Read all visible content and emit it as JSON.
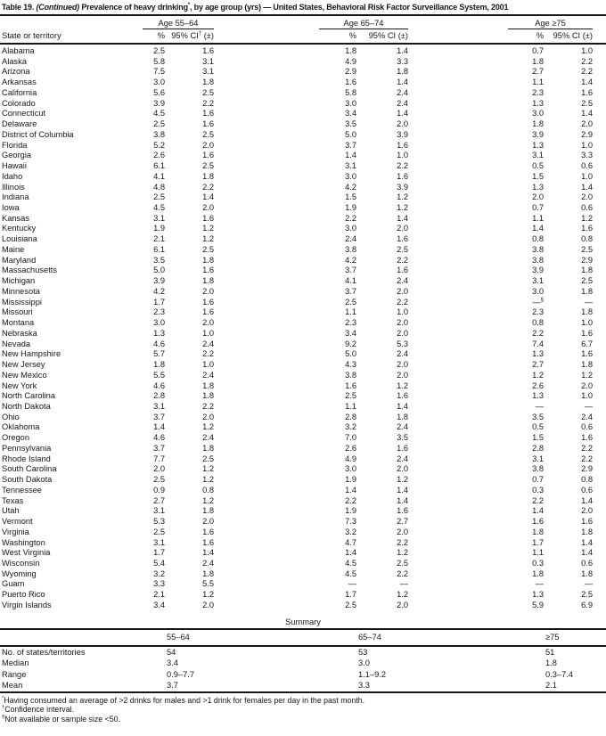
{
  "title": {
    "label": "Table 19.",
    "continued": " (Continued) ",
    "before_star": "Prevalence of heavy drinking",
    "star": "*",
    "after_star": ", by age group (yrs) — United States, Behavioral Risk Factor Surveillance System, 2001"
  },
  "table": {
    "col_groups": [
      "Age 55–64",
      "Age 65–74",
      "Age ≥75"
    ],
    "state_col_header": "State or territory",
    "pct_header": "%",
    "ci_header_first": "95% CI† (±)",
    "ci_header": "95% CI (±)",
    "rows": [
      {
        "state": "Alabama",
        "values": [
          "2.5",
          "1.6",
          "1.8",
          "1.4",
          "0.7",
          "1.0"
        ]
      },
      {
        "state": "Alaska",
        "values": [
          "5.8",
          "3.1",
          "4.9",
          "3.3",
          "1.8",
          "2.2"
        ]
      },
      {
        "state": "Arizona",
        "values": [
          "7.5",
          "3.1",
          "2.9",
          "1.8",
          "2.7",
          "2.2"
        ]
      },
      {
        "state": "Arkansas",
        "values": [
          "3.0",
          "1.8",
          "1.6",
          "1.4",
          "1.1",
          "1.4"
        ]
      },
      {
        "state": "California",
        "values": [
          "5.6",
          "2.5",
          "5.8",
          "2.4",
          "2.3",
          "1.6"
        ]
      },
      {
        "state": "Colorado",
        "values": [
          "3.9",
          "2.2",
          "3.0",
          "2.4",
          "1.3",
          "2.5"
        ]
      },
      {
        "state": "Connecticut",
        "values": [
          "4.5",
          "1.6",
          "3.4",
          "1.4",
          "3.0",
          "1.4"
        ]
      },
      {
        "state": "Delaware",
        "values": [
          "2.5",
          "1.6",
          "3.5",
          "2.0",
          "1.8",
          "2.0"
        ]
      },
      {
        "state": "District of Columbia",
        "values": [
          "3.8",
          "2.5",
          "5.0",
          "3.9",
          "3.9",
          "2.9"
        ]
      },
      {
        "state": "Florida",
        "values": [
          "5.2",
          "2.0",
          "3.7",
          "1.6",
          "1.3",
          "1.0"
        ]
      },
      {
        "state": "Georgia",
        "values": [
          "2.6",
          "1.6",
          "1.4",
          "1.0",
          "3.1",
          "3.3"
        ]
      },
      {
        "state": "Hawaii",
        "values": [
          "6.1",
          "2.5",
          "3.1",
          "2.2",
          "0.5",
          "0.6"
        ]
      },
      {
        "state": "Idaho",
        "values": [
          "4.1",
          "1.8",
          "3.0",
          "1.6",
          "1.5",
          "1.0"
        ]
      },
      {
        "state": "Illinois",
        "values": [
          "4.8",
          "2.2",
          "4.2",
          "3.9",
          "1.3",
          "1.4"
        ]
      },
      {
        "state": "Indiana",
        "values": [
          "2.5",
          "1.4",
          "1.5",
          "1.2",
          "2.0",
          "2.0"
        ]
      },
      {
        "state": "Iowa",
        "values": [
          "4.5",
          "2.0",
          "1.9",
          "1.2",
          "0.7",
          "0.6"
        ]
      },
      {
        "state": "Kansas",
        "values": [
          "3.1",
          "1.6",
          "2.2",
          "1.4",
          "1.1",
          "1.2"
        ]
      },
      {
        "state": "Kentucky",
        "values": [
          "1.9",
          "1.2",
          "3.0",
          "2.0",
          "1.4",
          "1.6"
        ]
      },
      {
        "state": "Louisiana",
        "values": [
          "2.1",
          "1.2",
          "2.4",
          "1.6",
          "0.8",
          "0.8"
        ]
      },
      {
        "state": "Maine",
        "values": [
          "6.1",
          "2.5",
          "3.8",
          "2.5",
          "3.8",
          "2.5"
        ]
      },
      {
        "state": "Maryland",
        "values": [
          "3.5",
          "1.8",
          "4.2",
          "2.2",
          "3.8",
          "2.9"
        ]
      },
      {
        "state": "Massachusetts",
        "values": [
          "5.0",
          "1.6",
          "3.7",
          "1.6",
          "3.9",
          "1.8"
        ]
      },
      {
        "state": "Michigan",
        "values": [
          "3.9",
          "1.8",
          "4.1",
          "2.4",
          "3.1",
          "2.5"
        ]
      },
      {
        "state": "Minnesota",
        "values": [
          "4.2",
          "2.0",
          "3.7",
          "2.0",
          "3.0",
          "1.8"
        ]
      },
      {
        "state": "Mississippi",
        "values": [
          "1.7",
          "1.6",
          "2.5",
          "2.2",
          "—§",
          "—"
        ]
      },
      {
        "state": "Missouri",
        "values": [
          "2.3",
          "1.6",
          "1.1",
          "1.0",
          "2.3",
          "1.8"
        ]
      },
      {
        "state": "Montana",
        "values": [
          "3.0",
          "2.0",
          "2.3",
          "2.0",
          "0.8",
          "1.0"
        ]
      },
      {
        "state": "Nebraska",
        "values": [
          "1.3",
          "1.0",
          "3.4",
          "2.0",
          "2.2",
          "1.6"
        ]
      },
      {
        "state": "Nevada",
        "values": [
          "4.6",
          "2.4",
          "9.2",
          "5.3",
          "7.4",
          "6.7"
        ]
      },
      {
        "state": "New Hampshire",
        "values": [
          "5.7",
          "2.2",
          "5.0",
          "2.4",
          "1.3",
          "1.6"
        ]
      },
      {
        "state": "New Jersey",
        "values": [
          "1.8",
          "1.0",
          "4.3",
          "2.0",
          "2.7",
          "1.8"
        ]
      },
      {
        "state": "New Mexico",
        "values": [
          "5.5",
          "2.4",
          "3.8",
          "2.0",
          "1.2",
          "1.2"
        ]
      },
      {
        "state": "New York",
        "values": [
          "4.6",
          "1.8",
          "1.6",
          "1.2",
          "2.6",
          "2.0"
        ]
      },
      {
        "state": "North Carolina",
        "values": [
          "2.8",
          "1.8",
          "2.5",
          "1.6",
          "1.3",
          "1.0"
        ]
      },
      {
        "state": "North Dakota",
        "values": [
          "3.1",
          "2.2",
          "1.1",
          "1.4",
          "—",
          "—"
        ]
      },
      {
        "state": "Ohio",
        "values": [
          "3.7",
          "2.0",
          "2.8",
          "1.8",
          "3.5",
          "2.4"
        ]
      },
      {
        "state": "Oklahoma",
        "values": [
          "1.4",
          "1.2",
          "3.2",
          "2.4",
          "0.5",
          "0.6"
        ]
      },
      {
        "state": "Oregon",
        "values": [
          "4.6",
          "2.4",
          "7.0",
          "3.5",
          "1.5",
          "1.6"
        ]
      },
      {
        "state": "Pennsylvania",
        "values": [
          "3.7",
          "1.8",
          "2.6",
          "1.6",
          "2.8",
          "2.2"
        ]
      },
      {
        "state": "Rhode Island",
        "values": [
          "7.7",
          "2.5",
          "4.9",
          "2.4",
          "3.1",
          "2.2"
        ]
      },
      {
        "state": "South Carolina",
        "values": [
          "2.0",
          "1.2",
          "3.0",
          "2.0",
          "3.8",
          "2.9"
        ]
      },
      {
        "state": "South Dakota",
        "values": [
          "2.5",
          "1.2",
          "1.9",
          "1.2",
          "0.7",
          "0.8"
        ]
      },
      {
        "state": "Tennessee",
        "values": [
          "0.9",
          "0.8",
          "1.4",
          "1.4",
          "0.3",
          "0.6"
        ]
      },
      {
        "state": "Texas",
        "values": [
          "2.7",
          "1.2",
          "2.2",
          "1.4",
          "2.2",
          "1.4"
        ]
      },
      {
        "state": "Utah",
        "values": [
          "3.1",
          "1.8",
          "1.9",
          "1.6",
          "1.4",
          "2.0"
        ]
      },
      {
        "state": "Vermont",
        "values": [
          "5.3",
          "2.0",
          "7.3",
          "2.7",
          "1.6",
          "1.6"
        ]
      },
      {
        "state": "Virginia",
        "values": [
          "2.5",
          "1.6",
          "3.2",
          "2.0",
          "1.8",
          "1.8"
        ]
      },
      {
        "state": "Washington",
        "values": [
          "3.1",
          "1.6",
          "4.7",
          "2.2",
          "1.7",
          "1.4"
        ]
      },
      {
        "state": "West Virginia",
        "values": [
          "1.7",
          "1.4",
          "1.4",
          "1.2",
          "1.1",
          "1.4"
        ]
      },
      {
        "state": "Wisconsin",
        "values": [
          "5.4",
          "2.4",
          "4.5",
          "2.5",
          "0.3",
          "0.6"
        ]
      },
      {
        "state": "Wyoming",
        "values": [
          "3.2",
          "1.8",
          "4.5",
          "2.2",
          "1.8",
          "1.8"
        ]
      },
      {
        "state": "Guam",
        "values": [
          "3.3",
          "5.5",
          "—",
          "—",
          "—",
          "—"
        ]
      },
      {
        "state": "Puerto Rico",
        "values": [
          "2.1",
          "1.2",
          "1.7",
          "1.2",
          "1.3",
          "2.5"
        ]
      },
      {
        "state": "Virgin Islands",
        "values": [
          "3.4",
          "2.0",
          "2.5",
          "2.0",
          "5.9",
          "6.9"
        ]
      }
    ]
  },
  "summary": {
    "title": "Summary",
    "col_headers": [
      "55–64",
      "65–74",
      "≥75"
    ],
    "rows": [
      {
        "label": "No. of states/territories",
        "values": [
          "54",
          "53",
          "51"
        ]
      },
      {
        "label": "Median",
        "values": [
          "3.4",
          "3.0",
          "1.8"
        ]
      },
      {
        "label": "Range",
        "values": [
          "0.9–7.7",
          "1.1–9.2",
          "0.3–7.4"
        ]
      },
      {
        "label": "Mean",
        "values": [
          "3.7",
          "3.3",
          "2.1"
        ]
      }
    ]
  },
  "footnotes": [
    {
      "marker": "*",
      "text": "Having consumed an average of >2 drinks for males and >1 drink for females per day in the past month."
    },
    {
      "marker": "†",
      "text": "Confidence interval."
    },
    {
      "marker": "§",
      "text": "Not available or sample size <50."
    }
  ]
}
